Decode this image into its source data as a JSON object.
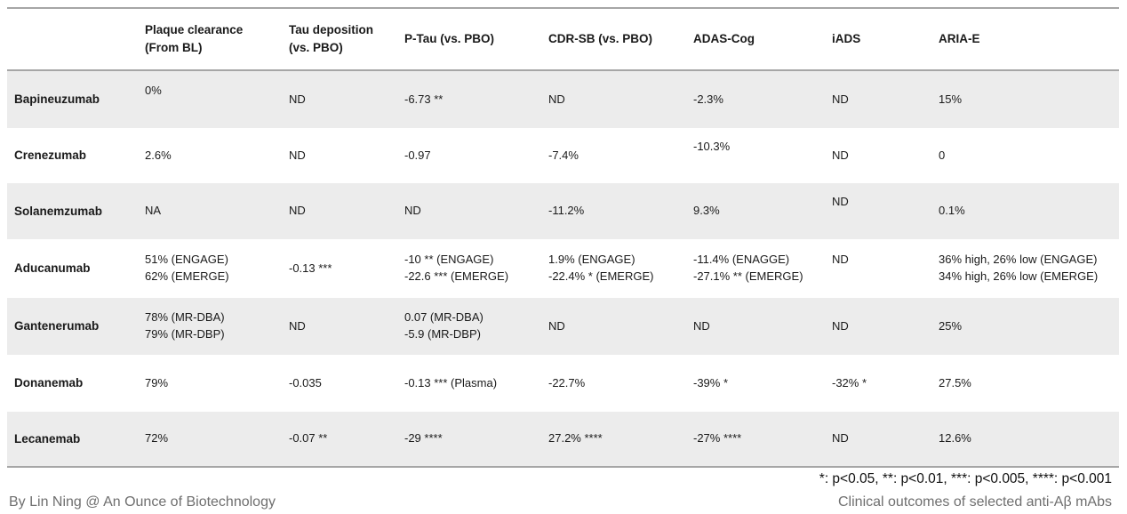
{
  "table": {
    "columns": [
      "",
      "Plaque clearance\n(From BL)",
      "Tau deposition\n(vs. PBO)",
      "P-Tau (vs. PBO)",
      "CDR-SB (vs. PBO)",
      "ADAS-Cog",
      "iADS",
      "ARIA-E"
    ],
    "rows": [
      {
        "name": "Bapineuzumab",
        "cells": [
          "0%",
          "ND",
          "-6.73 **",
          "ND",
          "-2.3%",
          "ND",
          "15%"
        ],
        "raised": [
          0
        ]
      },
      {
        "name": "Crenezumab",
        "cells": [
          "2.6%",
          "ND",
          "-0.97",
          "-7.4%",
          "-10.3%",
          "ND",
          "0"
        ],
        "raised": [
          4
        ]
      },
      {
        "name": "Solanemzumab",
        "cells": [
          "NA",
          "ND",
          "ND",
          "-11.2%",
          "9.3%",
          "ND",
          "0.1%"
        ],
        "raised": [
          5
        ]
      },
      {
        "name": "Aducanumab",
        "cells": [
          "51% (ENGAGE)\n62% (EMERGE)",
          "-0.13 ***",
          "-10 ** (ENGAGE)\n-22.6 *** (EMERGE)",
          "1.9% (ENGAGE)\n-22.4% * (EMERGE)",
          "-11.4% (ENAGGE)\n-27.1% ** (EMERGE)",
          "ND",
          "36% high, 26% low (ENGAGE)\n34% high, 26% low (EMERGE)"
        ],
        "raised": [
          5
        ]
      },
      {
        "name": "Gantenerumab",
        "cells": [
          "78% (MR-DBA)\n79% (MR-DBP)",
          "ND",
          "0.07 (MR-DBA)\n-5.9 (MR-DBP)",
          "ND",
          "ND",
          "ND",
          "25%"
        ],
        "raised": []
      },
      {
        "name": "Donanemab",
        "cells": [
          "79%",
          "-0.035",
          "-0.13 *** (Plasma)",
          "-22.7%",
          "-39% *",
          "-32% *",
          "27.5%"
        ],
        "raised": []
      },
      {
        "name": "Lecanemab",
        "cells": [
          "72%",
          "-0.07 **",
          "-29 ****",
          "27.2% ****",
          "-27% ****",
          "ND",
          "12.6%"
        ],
        "raised": []
      }
    ]
  },
  "footnote": "*: p<0.05, **: p<0.01, ***: p<0.005, ****: p<0.001",
  "footer": {
    "left": "By Lin Ning @ An Ounce of Biotechnology",
    "right": "Clinical outcomes of selected anti-Aβ mAbs"
  },
  "colors": {
    "stripe": "#ECECEC",
    "border": "#A6A6A6",
    "text": "#1A1A1A",
    "footer_text": "#6F6F6F"
  }
}
